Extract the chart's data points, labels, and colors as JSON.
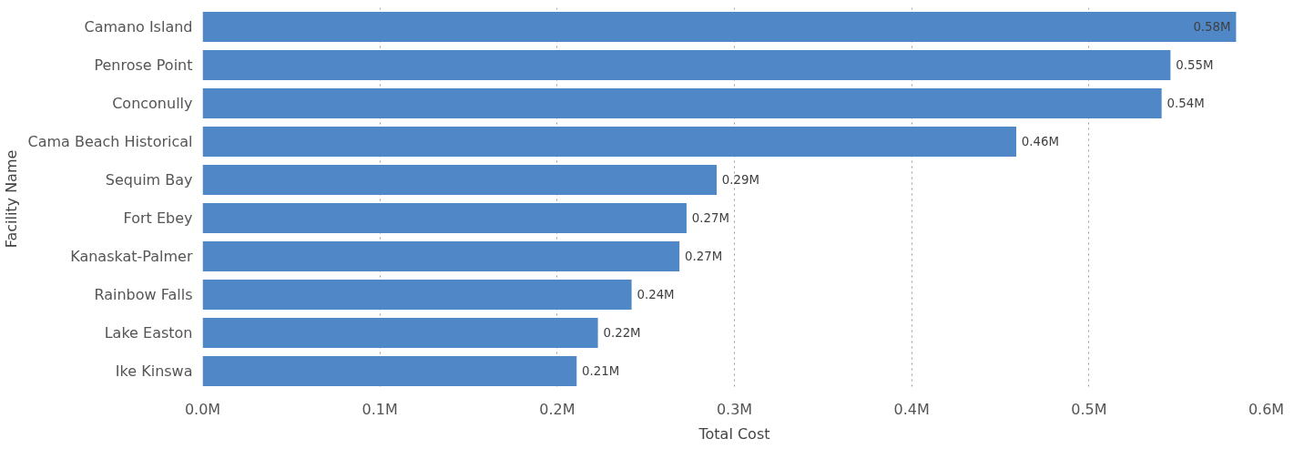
{
  "chart_data": {
    "type": "bar",
    "orientation": "horizontal",
    "xlabel": "Total Cost",
    "ylabel": "Facility Name",
    "categories": [
      "Camano Island",
      "Penrose Point",
      "Conconully",
      "Cama Beach Historical",
      "Sequim Bay",
      "Fort Ebey",
      "Kanaskat-Palmer",
      "Rainbow Falls",
      "Lake Easton",
      "Ike Kinswa"
    ],
    "values": [
      0.583,
      0.546,
      0.541,
      0.459,
      0.29,
      0.273,
      0.269,
      0.242,
      0.223,
      0.211
    ],
    "value_labels": [
      "0.58M",
      "0.55M",
      "0.54M",
      "0.46M",
      "0.29M",
      "0.27M",
      "0.27M",
      "0.24M",
      "0.22M",
      "0.21M"
    ],
    "color": "#5087c7",
    "xlim": [
      0,
      0.6
    ],
    "xticks": [
      {
        "value": 0,
        "label": "0.0M"
      },
      {
        "value": 0.1,
        "label": "0.1M"
      },
      {
        "value": 0.2,
        "label": "0.2M"
      },
      {
        "value": 0.3,
        "label": "0.3M"
      },
      {
        "value": 0.4,
        "label": "0.4M"
      },
      {
        "value": 0.5,
        "label": "0.5M"
      },
      {
        "value": 0.6,
        "label": "0.6M"
      }
    ],
    "grid": "x"
  }
}
